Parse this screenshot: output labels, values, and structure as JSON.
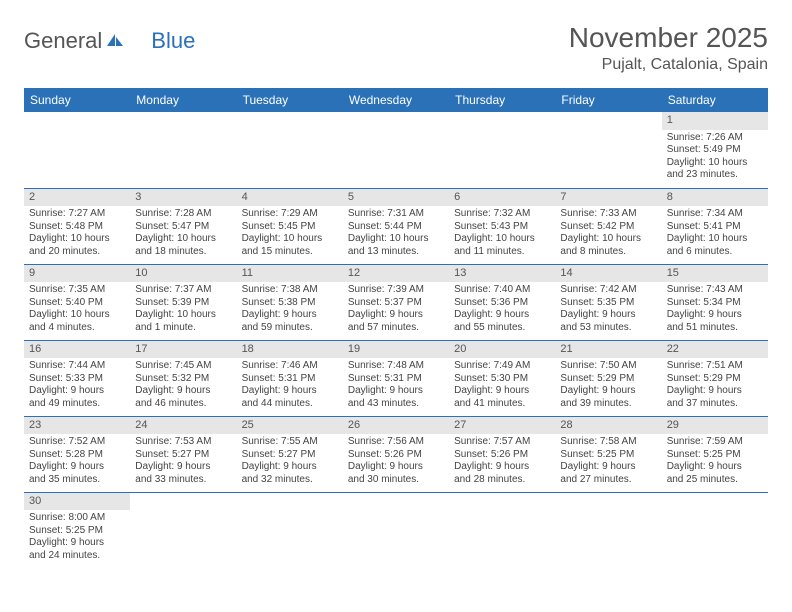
{
  "logo": {
    "part1": "General",
    "part2": "Blue"
  },
  "title": "November 2025",
  "location": "Pujalt, Catalonia, Spain",
  "colors": {
    "accent": "#2a71b8",
    "daynum_bg": "#e6e6e6",
    "text": "#444"
  },
  "weekdays": [
    "Sunday",
    "Monday",
    "Tuesday",
    "Wednesday",
    "Thursday",
    "Friday",
    "Saturday"
  ],
  "weeks": [
    [
      null,
      null,
      null,
      null,
      null,
      null,
      {
        "n": "1",
        "sr": "Sunrise: 7:26 AM",
        "ss": "Sunset: 5:49 PM",
        "d1": "Daylight: 10 hours",
        "d2": "and 23 minutes."
      }
    ],
    [
      {
        "n": "2",
        "sr": "Sunrise: 7:27 AM",
        "ss": "Sunset: 5:48 PM",
        "d1": "Daylight: 10 hours",
        "d2": "and 20 minutes."
      },
      {
        "n": "3",
        "sr": "Sunrise: 7:28 AM",
        "ss": "Sunset: 5:47 PM",
        "d1": "Daylight: 10 hours",
        "d2": "and 18 minutes."
      },
      {
        "n": "4",
        "sr": "Sunrise: 7:29 AM",
        "ss": "Sunset: 5:45 PM",
        "d1": "Daylight: 10 hours",
        "d2": "and 15 minutes."
      },
      {
        "n": "5",
        "sr": "Sunrise: 7:31 AM",
        "ss": "Sunset: 5:44 PM",
        "d1": "Daylight: 10 hours",
        "d2": "and 13 minutes."
      },
      {
        "n": "6",
        "sr": "Sunrise: 7:32 AM",
        "ss": "Sunset: 5:43 PM",
        "d1": "Daylight: 10 hours",
        "d2": "and 11 minutes."
      },
      {
        "n": "7",
        "sr": "Sunrise: 7:33 AM",
        "ss": "Sunset: 5:42 PM",
        "d1": "Daylight: 10 hours",
        "d2": "and 8 minutes."
      },
      {
        "n": "8",
        "sr": "Sunrise: 7:34 AM",
        "ss": "Sunset: 5:41 PM",
        "d1": "Daylight: 10 hours",
        "d2": "and 6 minutes."
      }
    ],
    [
      {
        "n": "9",
        "sr": "Sunrise: 7:35 AM",
        "ss": "Sunset: 5:40 PM",
        "d1": "Daylight: 10 hours",
        "d2": "and 4 minutes."
      },
      {
        "n": "10",
        "sr": "Sunrise: 7:37 AM",
        "ss": "Sunset: 5:39 PM",
        "d1": "Daylight: 10 hours",
        "d2": "and 1 minute."
      },
      {
        "n": "11",
        "sr": "Sunrise: 7:38 AM",
        "ss": "Sunset: 5:38 PM",
        "d1": "Daylight: 9 hours",
        "d2": "and 59 minutes."
      },
      {
        "n": "12",
        "sr": "Sunrise: 7:39 AM",
        "ss": "Sunset: 5:37 PM",
        "d1": "Daylight: 9 hours",
        "d2": "and 57 minutes."
      },
      {
        "n": "13",
        "sr": "Sunrise: 7:40 AM",
        "ss": "Sunset: 5:36 PM",
        "d1": "Daylight: 9 hours",
        "d2": "and 55 minutes."
      },
      {
        "n": "14",
        "sr": "Sunrise: 7:42 AM",
        "ss": "Sunset: 5:35 PM",
        "d1": "Daylight: 9 hours",
        "d2": "and 53 minutes."
      },
      {
        "n": "15",
        "sr": "Sunrise: 7:43 AM",
        "ss": "Sunset: 5:34 PM",
        "d1": "Daylight: 9 hours",
        "d2": "and 51 minutes."
      }
    ],
    [
      {
        "n": "16",
        "sr": "Sunrise: 7:44 AM",
        "ss": "Sunset: 5:33 PM",
        "d1": "Daylight: 9 hours",
        "d2": "and 49 minutes."
      },
      {
        "n": "17",
        "sr": "Sunrise: 7:45 AM",
        "ss": "Sunset: 5:32 PM",
        "d1": "Daylight: 9 hours",
        "d2": "and 46 minutes."
      },
      {
        "n": "18",
        "sr": "Sunrise: 7:46 AM",
        "ss": "Sunset: 5:31 PM",
        "d1": "Daylight: 9 hours",
        "d2": "and 44 minutes."
      },
      {
        "n": "19",
        "sr": "Sunrise: 7:48 AM",
        "ss": "Sunset: 5:31 PM",
        "d1": "Daylight: 9 hours",
        "d2": "and 43 minutes."
      },
      {
        "n": "20",
        "sr": "Sunrise: 7:49 AM",
        "ss": "Sunset: 5:30 PM",
        "d1": "Daylight: 9 hours",
        "d2": "and 41 minutes."
      },
      {
        "n": "21",
        "sr": "Sunrise: 7:50 AM",
        "ss": "Sunset: 5:29 PM",
        "d1": "Daylight: 9 hours",
        "d2": "and 39 minutes."
      },
      {
        "n": "22",
        "sr": "Sunrise: 7:51 AM",
        "ss": "Sunset: 5:29 PM",
        "d1": "Daylight: 9 hours",
        "d2": "and 37 minutes."
      }
    ],
    [
      {
        "n": "23",
        "sr": "Sunrise: 7:52 AM",
        "ss": "Sunset: 5:28 PM",
        "d1": "Daylight: 9 hours",
        "d2": "and 35 minutes."
      },
      {
        "n": "24",
        "sr": "Sunrise: 7:53 AM",
        "ss": "Sunset: 5:27 PM",
        "d1": "Daylight: 9 hours",
        "d2": "and 33 minutes."
      },
      {
        "n": "25",
        "sr": "Sunrise: 7:55 AM",
        "ss": "Sunset: 5:27 PM",
        "d1": "Daylight: 9 hours",
        "d2": "and 32 minutes."
      },
      {
        "n": "26",
        "sr": "Sunrise: 7:56 AM",
        "ss": "Sunset: 5:26 PM",
        "d1": "Daylight: 9 hours",
        "d2": "and 30 minutes."
      },
      {
        "n": "27",
        "sr": "Sunrise: 7:57 AM",
        "ss": "Sunset: 5:26 PM",
        "d1": "Daylight: 9 hours",
        "d2": "and 28 minutes."
      },
      {
        "n": "28",
        "sr": "Sunrise: 7:58 AM",
        "ss": "Sunset: 5:25 PM",
        "d1": "Daylight: 9 hours",
        "d2": "and 27 minutes."
      },
      {
        "n": "29",
        "sr": "Sunrise: 7:59 AM",
        "ss": "Sunset: 5:25 PM",
        "d1": "Daylight: 9 hours",
        "d2": "and 25 minutes."
      }
    ],
    [
      {
        "n": "30",
        "sr": "Sunrise: 8:00 AM",
        "ss": "Sunset: 5:25 PM",
        "d1": "Daylight: 9 hours",
        "d2": "and 24 minutes."
      },
      null,
      null,
      null,
      null,
      null,
      null
    ]
  ]
}
